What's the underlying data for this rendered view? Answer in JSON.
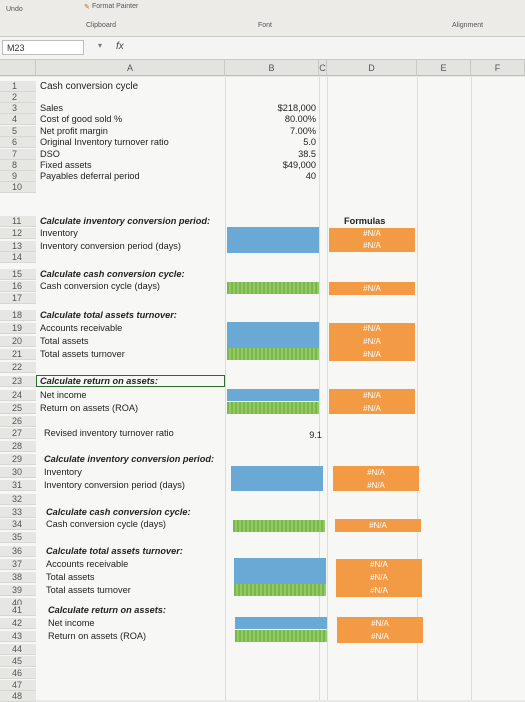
{
  "ribbon": {
    "undo": "Undo",
    "format_painter": "Format Painter",
    "clipboard": "Clipboard",
    "font": "Font",
    "alignment": "Alignment"
  },
  "formula_bar": {
    "name_box": "M23",
    "fx": "fx"
  },
  "columns": [
    "A",
    "B",
    "C",
    "D",
    "E",
    "F"
  ],
  "colors": {
    "blue": "#6aa9d6",
    "green": "#7ab84a",
    "orange": "#f39a45"
  },
  "rows": [
    "1",
    "2",
    "3",
    "4",
    "5",
    "6",
    "7",
    "8",
    "9",
    "10",
    "11",
    "12",
    "13",
    "14",
    "15",
    "16",
    "17",
    "18",
    "19",
    "20",
    "21",
    "22",
    "23",
    "24",
    "25",
    "26",
    "27",
    "28",
    "29",
    "30",
    "31",
    "32",
    "33",
    "34",
    "35",
    "36",
    "37",
    "38",
    "39",
    "40",
    "41",
    "42",
    "43",
    "44",
    "45",
    "46",
    "47",
    "48"
  ],
  "sheet": {
    "title": "Cash conversion cycle",
    "inputs": [
      {
        "label": "Sales",
        "value": "$218,000"
      },
      {
        "label": "Cost of good sold %",
        "value": "80.00%"
      },
      {
        "label": "Net profit margin",
        "value": "7.00%"
      },
      {
        "label": "Original Inventory turnover ratio",
        "value": "5.0"
      },
      {
        "label": "DSO",
        "value": "38.5"
      },
      {
        "label": "Fixed assets",
        "value": "$49,000"
      },
      {
        "label": "Payables deferral period",
        "value": "40"
      }
    ],
    "formulas_header": "Formulas",
    "na": "#N/A",
    "sec1_title": "Calculate inventory conversion period:",
    "sec1_a": "Inventory",
    "sec1_b": "Inventory conversion period (days)",
    "sec2_title": "Calculate cash conversion cycle:",
    "sec2_a": "Cash conversion cycle (days)",
    "sec3_title": "Calculate total assets turnover:",
    "sec3_a": "Accounts receivable",
    "sec3_b": "Total assets",
    "sec3_c": "Total assets turnover",
    "sec4_title": "Calculate return on assets:",
    "sec4_a": "Net income",
    "sec4_b": "Return on assets (ROA)",
    "revised_label": "Revised inventory turnover ratio",
    "revised_value": "9.1"
  }
}
